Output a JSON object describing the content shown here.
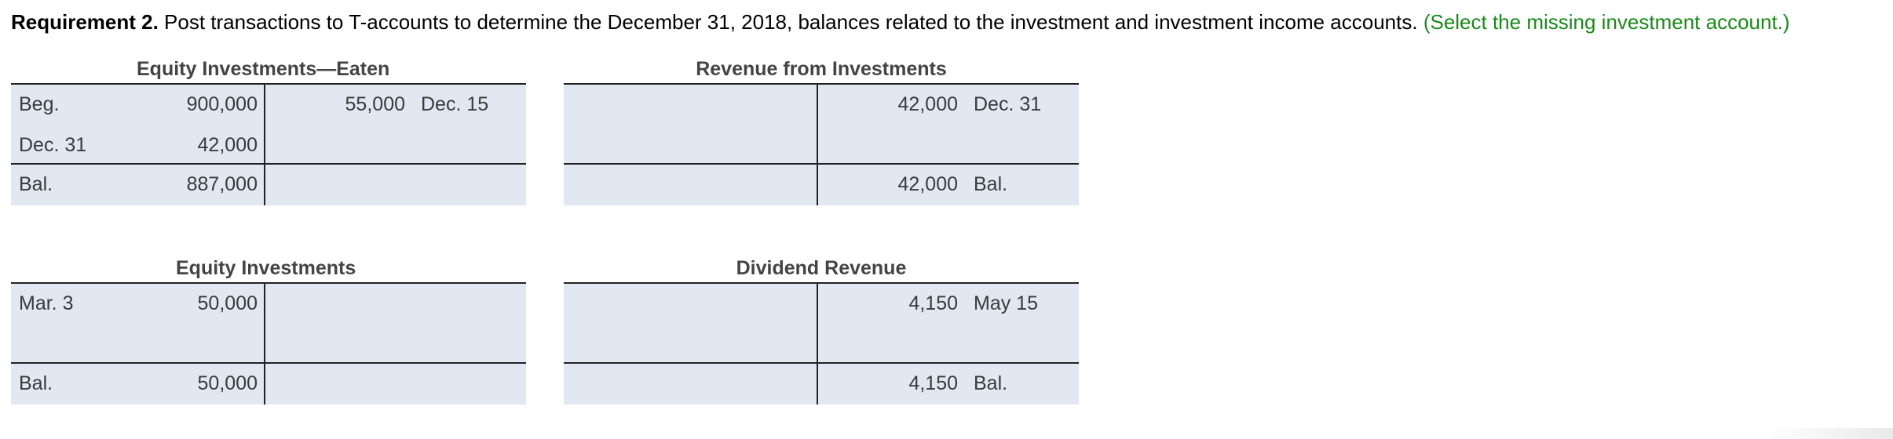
{
  "requirement": {
    "label": "Requirement 2.",
    "text": " Post transactions to T-accounts to determine the December 31, 2018, balances related to the investment and investment income accounts. ",
    "hint": "(Select the missing investment account.)"
  },
  "accounts": [
    {
      "title": "Equity Investments—Eaten",
      "debit": [
        {
          "label": "Beg.",
          "amount": "900,000"
        },
        {
          "label": "Dec. 31",
          "amount": "42,000"
        }
      ],
      "credit": [
        {
          "amount": "55,000",
          "label": "Dec. 15"
        }
      ],
      "balance": {
        "side": "debit",
        "label": "Bal.",
        "amount": "887,000"
      }
    },
    {
      "title": "Revenue from Investments",
      "debit": [],
      "credit": [
        {
          "amount": "42,000",
          "label": "Dec. 31"
        }
      ],
      "balance": {
        "side": "credit",
        "label": "Bal.",
        "amount": "42,000"
      }
    },
    {
      "title": "Equity Investments",
      "debit": [
        {
          "label": "Mar. 3",
          "amount": "50,000"
        }
      ],
      "credit": [],
      "balance": {
        "side": "debit",
        "label": "Bal.",
        "amount": "50,000"
      }
    },
    {
      "title": "Dividend Revenue",
      "debit": [],
      "credit": [
        {
          "amount": "4,150",
          "label": "May 15"
        }
      ],
      "balance": {
        "side": "credit",
        "label": "Bal.",
        "amount": "4,150"
      }
    }
  ],
  "colors": {
    "cell_background": "#e1e8f2",
    "hint_text": "#1a8a1a",
    "rule": "#222222"
  }
}
